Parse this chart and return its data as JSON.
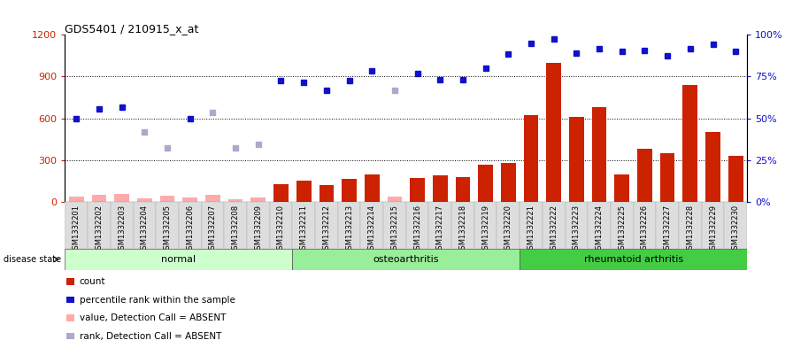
{
  "title": "GDS5401 / 210915_x_at",
  "samples": [
    "GSM1332201",
    "GSM1332202",
    "GSM1332203",
    "GSM1332204",
    "GSM1332205",
    "GSM1332206",
    "GSM1332207",
    "GSM1332208",
    "GSM1332209",
    "GSM1332210",
    "GSM1332211",
    "GSM1332212",
    "GSM1332213",
    "GSM1332214",
    "GSM1332215",
    "GSM1332216",
    "GSM1332217",
    "GSM1332218",
    "GSM1332219",
    "GSM1332220",
    "GSM1332221",
    "GSM1332222",
    "GSM1332223",
    "GSM1332224",
    "GSM1332225",
    "GSM1332226",
    "GSM1332227",
    "GSM1332228",
    "GSM1332229",
    "GSM1332230"
  ],
  "count_values": [
    35,
    50,
    60,
    25,
    45,
    30,
    50,
    20,
    30,
    130,
    150,
    120,
    165,
    200,
    35,
    170,
    190,
    180,
    265,
    280,
    620,
    1000,
    610,
    680,
    200,
    380,
    350,
    840,
    500,
    330
  ],
  "count_absent": [
    true,
    true,
    true,
    true,
    true,
    true,
    true,
    true,
    true,
    false,
    false,
    false,
    false,
    false,
    true,
    false,
    false,
    false,
    false,
    false,
    false,
    false,
    false,
    false,
    false,
    false,
    false,
    false,
    false,
    false
  ],
  "rank_values": [
    600,
    670,
    680,
    500,
    390,
    600,
    640,
    390,
    410,
    870,
    860,
    800,
    870,
    940,
    800,
    920,
    880,
    880,
    960,
    1060,
    1140,
    1170,
    1070,
    1100,
    1080,
    1090,
    1050,
    1100,
    1130,
    1080
  ],
  "rank_absent": [
    false,
    false,
    false,
    true,
    true,
    false,
    true,
    true,
    true,
    false,
    false,
    false,
    false,
    false,
    true,
    false,
    false,
    false,
    false,
    false,
    false,
    false,
    false,
    false,
    false,
    false,
    false,
    false,
    false,
    false
  ],
  "bar_color_present": "#cc2200",
  "bar_color_absent": "#ffaaaa",
  "dot_color_present": "#1111cc",
  "dot_color_absent": "#aaaacc",
  "group_colors": {
    "normal": "#ccffcc",
    "osteoarthritis": "#99ee99",
    "rheumatoid arthritis": "#44cc44"
  },
  "groups_info": [
    {
      "name": "normal",
      "start": 0,
      "end": 9
    },
    {
      "name": "osteoarthritis",
      "start": 10,
      "end": 19
    },
    {
      "name": "rheumatoid arthritis",
      "start": 20,
      "end": 29
    }
  ],
  "background_color": "#ffffff",
  "left_ylim": [
    0,
    1200
  ],
  "left_yticks": [
    0,
    300,
    600,
    900,
    1200
  ],
  "right_ylim": [
    0,
    100
  ],
  "right_yticks": [
    0,
    25,
    50,
    75,
    100
  ],
  "legend_entries": [
    {
      "label": "count",
      "color": "#cc2200"
    },
    {
      "label": "percentile rank within the sample",
      "color": "#1111cc"
    },
    {
      "label": "value, Detection Call = ABSENT",
      "color": "#ffaaaa"
    },
    {
      "label": "rank, Detection Call = ABSENT",
      "color": "#aaaacc"
    }
  ],
  "title_fontsize": 9,
  "tick_label_fontsize": 6,
  "legend_fontsize": 7.5
}
